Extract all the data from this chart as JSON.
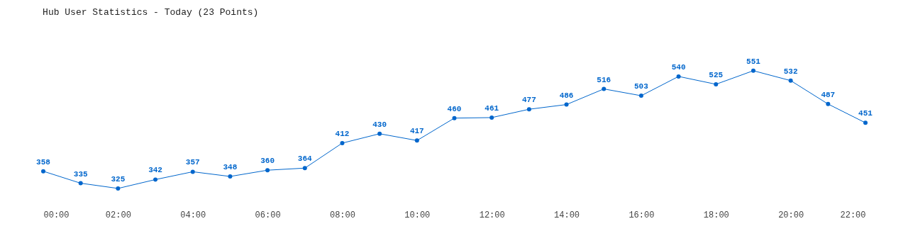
{
  "chart_data": {
    "type": "line",
    "title": "Hub User Statistics - Today (23 Points)",
    "x": [
      0,
      1,
      2,
      3,
      4,
      5,
      6,
      7,
      8,
      9,
      10,
      11,
      12,
      13,
      14,
      15,
      16,
      17,
      18,
      19,
      20,
      21,
      22
    ],
    "series": [
      {
        "color": "#0066cc",
        "values": [
          358,
          335,
          325,
          342,
          357,
          348,
          360,
          364,
          412,
          430,
          417,
          460,
          461,
          477,
          486,
          516,
          503,
          540,
          525,
          551,
          532,
          487,
          451
        ]
      }
    ],
    "xlim": [
      0,
      22
    ],
    "xticks": [
      {
        "value": 0,
        "label": "00:00"
      },
      {
        "value": 2,
        "label": "02:00"
      },
      {
        "value": 4,
        "label": "04:00"
      },
      {
        "value": 6,
        "label": "06:00"
      },
      {
        "value": 8,
        "label": "08:00"
      },
      {
        "value": 10,
        "label": "10:00"
      },
      {
        "value": 12,
        "label": "12:00"
      },
      {
        "value": 14,
        "label": "14:00"
      },
      {
        "value": 16,
        "label": "16:00"
      },
      {
        "value": 18,
        "label": "18:00"
      },
      {
        "value": 20,
        "label": "20:00"
      },
      {
        "value": 22,
        "label": "22:00"
      }
    ],
    "tick_labels": "x",
    "data_labels": true,
    "marker": "circle",
    "line_style": "solid",
    "grid": false,
    "legend": false
  }
}
